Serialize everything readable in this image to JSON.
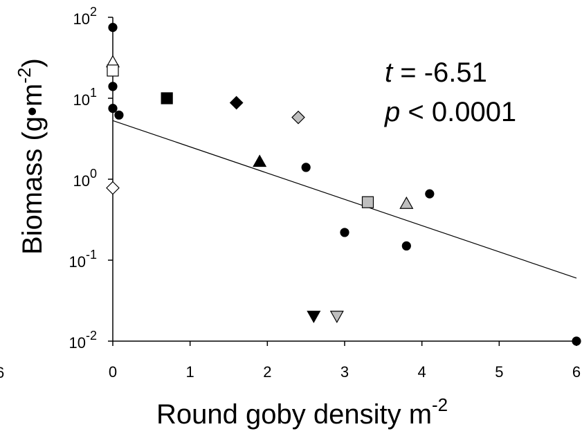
{
  "chart_data": {
    "type": "scatter",
    "xlabel": "Round goby density m",
    "xlabel_superscript": "-2",
    "ylabel": "Biomass  (g•m",
    "ylabel_superscript": "-2",
    "ylabel_close": ")",
    "x_ticks": [
      "0",
      "1",
      "2",
      "3",
      "4",
      "5",
      "6"
    ],
    "y_ticks": [
      {
        "base": "10",
        "exp": "-2"
      },
      {
        "base": "10",
        "exp": "-1"
      },
      {
        "base": "10",
        "exp": "0"
      },
      {
        "base": "10",
        "exp": "1"
      },
      {
        "base": "10",
        "exp": "2"
      }
    ],
    "left_cut_label": "6",
    "xlim": [
      0,
      6
    ],
    "ylim": [
      0.01,
      100
    ],
    "y_scale": "log",
    "grid": false,
    "legend": "none",
    "annotations": {
      "t_label": "t",
      "t_value": " = -6.51",
      "p_label": "p",
      "p_value": " < 0.0001"
    },
    "regression_line": {
      "x": [
        0,
        6
      ],
      "y": [
        5.3,
        0.06
      ]
    },
    "points": [
      {
        "x": 0.0,
        "y": 75,
        "marker": "circle",
        "fill": "black"
      },
      {
        "x": 0.0,
        "y": 14,
        "marker": "circle",
        "fill": "black"
      },
      {
        "x": 0.0,
        "y": 7.5,
        "marker": "circle",
        "fill": "black"
      },
      {
        "x": 0.08,
        "y": 6.2,
        "marker": "circle",
        "fill": "black"
      },
      {
        "x": 0.0,
        "y": 28,
        "marker": "triangle-up",
        "fill": "white"
      },
      {
        "x": 0.0,
        "y": 22,
        "marker": "square",
        "fill": "white"
      },
      {
        "x": 0.0,
        "y": 0.78,
        "marker": "diamond",
        "fill": "white"
      },
      {
        "x": 0.7,
        "y": 10,
        "marker": "square",
        "fill": "black"
      },
      {
        "x": 1.6,
        "y": 8.8,
        "marker": "diamond",
        "fill": "black"
      },
      {
        "x": 2.4,
        "y": 5.8,
        "marker": "diamond",
        "fill": "gray"
      },
      {
        "x": 1.9,
        "y": 1.65,
        "marker": "triangle-up",
        "fill": "black"
      },
      {
        "x": 2.5,
        "y": 1.4,
        "marker": "circle",
        "fill": "black"
      },
      {
        "x": 3.3,
        "y": 0.52,
        "marker": "square",
        "fill": "gray"
      },
      {
        "x": 3.8,
        "y": 0.5,
        "marker": "triangle-up",
        "fill": "gray"
      },
      {
        "x": 4.1,
        "y": 0.66,
        "marker": "circle",
        "fill": "black"
      },
      {
        "x": 3.0,
        "y": 0.22,
        "marker": "circle",
        "fill": "black"
      },
      {
        "x": 3.8,
        "y": 0.15,
        "marker": "circle",
        "fill": "black"
      },
      {
        "x": 2.6,
        "y": 0.02,
        "marker": "triangle-down",
        "fill": "black"
      },
      {
        "x": 2.9,
        "y": 0.02,
        "marker": "triangle-down",
        "fill": "gray"
      },
      {
        "x": 6.0,
        "y": 0.01,
        "marker": "circle",
        "fill": "black"
      }
    ]
  },
  "colors": {
    "black": "#000000",
    "gray": "#bfbfbf",
    "white": "#ffffff",
    "axis": "#000000"
  }
}
